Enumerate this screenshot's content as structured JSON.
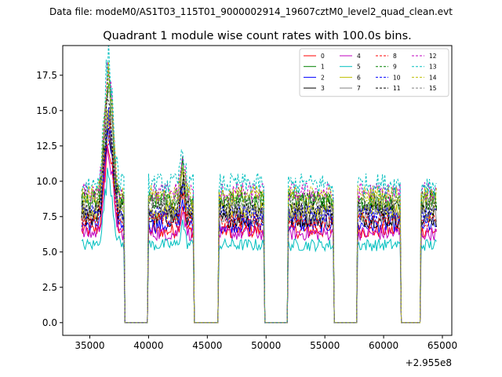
{
  "figure": {
    "suptitle": "Data file: modeM0/AS1T03_115T01_9000002914_19607cztM0_level2_quad_clean.evt"
  },
  "chart_data": {
    "type": "line",
    "title": "Quadrant 1 module wise count rates with 100.0s bins.",
    "xlabel": "",
    "ylabel": "",
    "x_offset_label": "+2.955e8",
    "xlim": [
      32700,
      65800
    ],
    "ylim": [
      -0.9,
      19.6
    ],
    "x_ticks": [
      35000,
      40000,
      45000,
      50000,
      55000,
      60000,
      65000
    ],
    "x_tick_labels": [
      "35000",
      "40000",
      "45000",
      "50000",
      "55000",
      "60000",
      "65000"
    ],
    "y_ticks": [
      0.0,
      2.5,
      5.0,
      7.5,
      10.0,
      12.5,
      15.0,
      17.5
    ],
    "y_tick_labels": [
      "0.0",
      "2.5",
      "5.0",
      "7.5",
      "10.0",
      "12.5",
      "15.0",
      "17.5"
    ],
    "legend_position": "top-right",
    "legend_columns": 4,
    "orbit_envelope": {
      "bin_size_s": 100,
      "x_start": 34300,
      "x_end": 64500,
      "on_windows": [
        [
          34300,
          37900
        ],
        [
          40000,
          43800
        ],
        [
          46000,
          49800
        ],
        [
          51900,
          55700
        ],
        [
          57800,
          61400
        ],
        [
          63200,
          64500
        ]
      ],
      "bursts": [
        {
          "center": 36600,
          "width": 500,
          "factor": 1.9
        },
        {
          "center": 42900,
          "width": 250,
          "factor": 1.28
        }
      ]
    },
    "series": [
      {
        "name": "0",
        "color": "#ff0000",
        "dash": "solid",
        "level": 6.5
      },
      {
        "name": "1",
        "color": "#008000",
        "dash": "solid",
        "level": 8.6
      },
      {
        "name": "2",
        "color": "#0000ff",
        "dash": "solid",
        "level": 6.9
      },
      {
        "name": "3",
        "color": "#000000",
        "dash": "solid",
        "level": 7.3
      },
      {
        "name": "4",
        "color": "#bf00bf",
        "dash": "solid",
        "level": 6.3
      },
      {
        "name": "5",
        "color": "#00bfbf",
        "dash": "solid",
        "level": 5.5
      },
      {
        "name": "6",
        "color": "#bfbf00",
        "dash": "solid",
        "level": 7.9
      },
      {
        "name": "7",
        "color": "#808080",
        "dash": "solid",
        "level": 7.6
      },
      {
        "name": "8",
        "color": "#ff0000",
        "dash": "dashed",
        "level": 7.2
      },
      {
        "name": "9",
        "color": "#008000",
        "dash": "dashed",
        "level": 8.8
      },
      {
        "name": "10",
        "color": "#0000ff",
        "dash": "dashed",
        "level": 7.7
      },
      {
        "name": "11",
        "color": "#000000",
        "dash": "dashed",
        "level": 8.0
      },
      {
        "name": "12",
        "color": "#bf00bf",
        "dash": "dashed",
        "level": 9.2
      },
      {
        "name": "13",
        "color": "#00bfbf",
        "dash": "dashed",
        "level": 9.8
      },
      {
        "name": "14",
        "color": "#bfbf00",
        "dash": "dashed",
        "level": 9.0
      },
      {
        "name": "15",
        "color": "#808080",
        "dash": "dashed",
        "level": 8.4
      }
    ]
  }
}
